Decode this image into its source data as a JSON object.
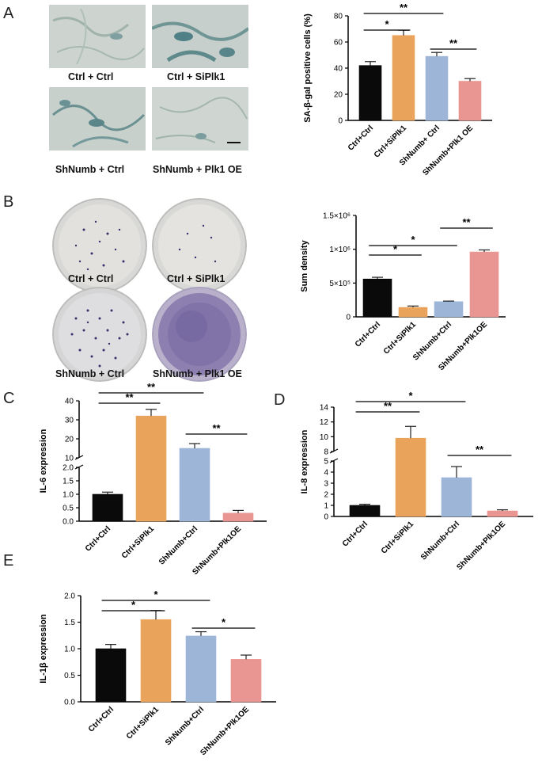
{
  "panels": {
    "A": {
      "letter": "A",
      "images": [
        {
          "label": "Ctrl + Ctrl"
        },
        {
          "label": "Ctrl + SiPlk1"
        },
        {
          "label": "ShNumb + Ctrl"
        },
        {
          "label": "ShNumb + Plk1 OE"
        }
      ]
    },
    "B": {
      "letter": "B",
      "images": [
        {
          "label": "Ctrl + Ctrl"
        },
        {
          "label": "Ctrl + SiPlk1"
        },
        {
          "label": "ShNumb + Ctrl"
        },
        {
          "label": "ShNumb + Plk1 OE"
        }
      ]
    },
    "C": {
      "letter": "C"
    },
    "D": {
      "letter": "D"
    },
    "E": {
      "letter": "E"
    }
  },
  "colors": {
    "black": "#0a0a0a",
    "orange": "#e9a35a",
    "blue": "#9db6d8",
    "pink": "#e99591"
  },
  "chart_data": [
    {
      "id": "A",
      "type": "bar",
      "ylabel": "SA-β-gal positive cells (%)",
      "categories": [
        "Ctrl+Ctrl",
        "Ctrl+SiPlk1",
        "ShNumb+ Ctrl",
        "ShNumb+Plk1 OE"
      ],
      "values": [
        42,
        65,
        49,
        30
      ],
      "errors": [
        3,
        4,
        3,
        2
      ],
      "ylim": [
        0,
        80
      ],
      "yticks": [
        "0",
        "20",
        "40",
        "60",
        "80"
      ],
      "significance": [
        {
          "from": 0,
          "to": 1,
          "label": "*"
        },
        {
          "from": 0,
          "to": 2,
          "label": "**"
        },
        {
          "from": 2,
          "to": 3,
          "label": "**"
        }
      ]
    },
    {
      "id": "B",
      "type": "bar",
      "ylabel": "Sum density",
      "categories": [
        "Ctrl+Ctrl",
        "Ctrl+SiPlk1",
        "ShNumb+Ctrl",
        "ShNumb+Plk1OE"
      ],
      "values": [
        560000,
        140000,
        225000,
        960000
      ],
      "errors": [
        25000,
        20000,
        8000,
        30000
      ],
      "ylim": [
        0,
        1500000
      ],
      "yticks": [
        "0",
        "5×10⁵",
        "1×10⁶",
        "1.5×10⁶"
      ],
      "significance": [
        {
          "from": 0,
          "to": 1,
          "label": "*"
        },
        {
          "from": 0,
          "to": 2,
          "label": "*"
        },
        {
          "from": 2,
          "to": 3,
          "label": "**"
        }
      ]
    },
    {
      "id": "C",
      "type": "bar",
      "ylabel": "IL-6 expression",
      "categories": [
        "Ctrl+Ctrl",
        "Ctrl+SiPlk1",
        "ShNumb+Ctrl",
        "ShNumb+Plk1OE"
      ],
      "values": [
        1.0,
        32,
        15,
        0.3
      ],
      "errors": [
        0.08,
        3.5,
        2.5,
        0.1
      ],
      "axis_break": {
        "lower": [
          0,
          2.0
        ],
        "upper": [
          10,
          40
        ]
      },
      "yticks_lower": [
        "0.0",
        "0.5",
        "1.0",
        "1.5",
        "2.0"
      ],
      "yticks_upper": [
        "10",
        "20",
        "30",
        "40"
      ],
      "significance": [
        {
          "from": 0,
          "to": 1,
          "label": "**"
        },
        {
          "from": 0,
          "to": 2,
          "label": "**"
        },
        {
          "from": 2,
          "to": 3,
          "label": "**"
        }
      ]
    },
    {
      "id": "D",
      "type": "bar",
      "ylabel": "IL-8 expression",
      "categories": [
        "Ctrl+Ctrl",
        "Ctrl+SiPlk1",
        "ShNumb+Ctrl",
        "ShNumb+Plk1OE"
      ],
      "values": [
        1.0,
        9.8,
        3.5,
        0.5
      ],
      "errors": [
        0.1,
        1.6,
        1.0,
        0.1
      ],
      "axis_break": {
        "lower": [
          0,
          5
        ],
        "upper": [
          8,
          14
        ]
      },
      "yticks_lower": [
        "0",
        "1",
        "2",
        "3",
        "4",
        "5"
      ],
      "yticks_upper": [
        "8",
        "10",
        "12",
        "14"
      ],
      "significance": [
        {
          "from": 0,
          "to": 1,
          "label": "**"
        },
        {
          "from": 0,
          "to": 2,
          "label": "*"
        },
        {
          "from": 2,
          "to": 3,
          "label": "**"
        }
      ]
    },
    {
      "id": "E",
      "type": "bar",
      "ylabel": "IL-1β expression",
      "categories": [
        "Ctrl+Ctrl",
        "Ctrl+SiPlk1",
        "ShNumb+Ctrl",
        "ShNumb+Plk1OE"
      ],
      "values": [
        1.0,
        1.55,
        1.24,
        0.8
      ],
      "errors": [
        0.08,
        0.17,
        0.08,
        0.08
      ],
      "ylim": [
        0,
        2.0
      ],
      "yticks": [
        "0.0",
        "0.5",
        "1.0",
        "1.5",
        "2.0"
      ],
      "significance": [
        {
          "from": 0,
          "to": 1,
          "label": "*"
        },
        {
          "from": 0,
          "to": 2,
          "label": "*"
        },
        {
          "from": 2,
          "to": 3,
          "label": "*"
        }
      ]
    }
  ]
}
